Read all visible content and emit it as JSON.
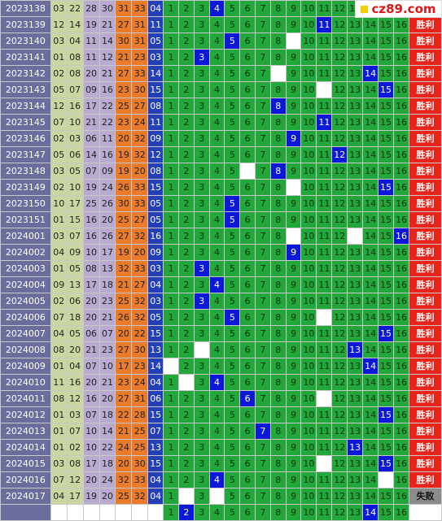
{
  "logo": {
    "text": "cz89.com"
  },
  "win_label": "胜利",
  "lose_label": "失败",
  "rows": [
    {
      "date": "2023138",
      "reds": [
        "03",
        "22",
        "28",
        "30",
        "31",
        "33"
      ],
      "blue": "04",
      "mark": 4,
      "result": "win"
    },
    {
      "date": "2023139",
      "reds": [
        "12",
        "14",
        "19",
        "21",
        "27",
        "31"
      ],
      "blue": "11",
      "mark": 11,
      "result": "win"
    },
    {
      "date": "2023140",
      "reds": [
        "03",
        "04",
        "11",
        "14",
        "30",
        "31"
      ],
      "blue": "05",
      "mark": 5,
      "result": "win"
    },
    {
      "date": "2023141",
      "reds": [
        "01",
        "08",
        "11",
        "12",
        "21",
        "23"
      ],
      "blue": "03",
      "mark": 3,
      "result": "win"
    },
    {
      "date": "2023142",
      "reds": [
        "02",
        "08",
        "20",
        "21",
        "27",
        "33"
      ],
      "blue": "14",
      "mark": 14,
      "result": "win"
    },
    {
      "date": "2023143",
      "reds": [
        "05",
        "07",
        "09",
        "16",
        "23",
        "30"
      ],
      "blue": "15",
      "mark": 15,
      "result": "win"
    },
    {
      "date": "2023144",
      "reds": [
        "12",
        "16",
        "17",
        "22",
        "25",
        "27"
      ],
      "blue": "08",
      "mark": 8,
      "result": "win"
    },
    {
      "date": "2023145",
      "reds": [
        "07",
        "10",
        "21",
        "22",
        "23",
        "24"
      ],
      "blue": "11",
      "mark": 11,
      "result": "win"
    },
    {
      "date": "2023146",
      "reds": [
        "02",
        "03",
        "06",
        "11",
        "20",
        "32"
      ],
      "blue": "09",
      "mark": 9,
      "result": "win"
    },
    {
      "date": "2023147",
      "reds": [
        "05",
        "06",
        "14",
        "16",
        "19",
        "32"
      ],
      "blue": "12",
      "mark": 12,
      "result": "win"
    },
    {
      "date": "2023148",
      "reds": [
        "03",
        "05",
        "07",
        "09",
        "19",
        "20"
      ],
      "blue": "08",
      "mark": 8,
      "result": "win"
    },
    {
      "date": "2023149",
      "reds": [
        "02",
        "10",
        "19",
        "24",
        "26",
        "33"
      ],
      "blue": "15",
      "mark": 15,
      "result": "win"
    },
    {
      "date": "2023150",
      "reds": [
        "10",
        "17",
        "25",
        "26",
        "30",
        "33"
      ],
      "blue": "05",
      "mark": 5,
      "result": "win"
    },
    {
      "date": "2023151",
      "reds": [
        "01",
        "15",
        "16",
        "20",
        "25",
        "27"
      ],
      "blue": "05",
      "mark": 5,
      "result": "win"
    },
    {
      "date": "2024001",
      "reds": [
        "03",
        "07",
        "16",
        "26",
        "27",
        "32"
      ],
      "blue": "16",
      "mark": 16,
      "result": "win"
    },
    {
      "date": "2024002",
      "reds": [
        "04",
        "09",
        "10",
        "17",
        "19",
        "20"
      ],
      "blue": "09",
      "mark": 9,
      "result": "win"
    },
    {
      "date": "2024003",
      "reds": [
        "01",
        "05",
        "08",
        "13",
        "32",
        "33"
      ],
      "blue": "03",
      "mark": 3,
      "result": "win"
    },
    {
      "date": "2024004",
      "reds": [
        "09",
        "13",
        "17",
        "18",
        "21",
        "27"
      ],
      "blue": "04",
      "mark": 4,
      "result": "win"
    },
    {
      "date": "2024005",
      "reds": [
        "02",
        "06",
        "20",
        "23",
        "25",
        "32"
      ],
      "blue": "03",
      "mark": 3,
      "result": "win"
    },
    {
      "date": "2024006",
      "reds": [
        "07",
        "18",
        "20",
        "21",
        "26",
        "32"
      ],
      "blue": "05",
      "mark": 5,
      "result": "win"
    },
    {
      "date": "2024007",
      "reds": [
        "04",
        "05",
        "06",
        "07",
        "20",
        "22"
      ],
      "blue": "15",
      "mark": 15,
      "result": "win"
    },
    {
      "date": "2024008",
      "reds": [
        "08",
        "20",
        "21",
        "23",
        "27",
        "30"
      ],
      "blue": "13",
      "mark": 13,
      "result": "win"
    },
    {
      "date": "2024009",
      "reds": [
        "01",
        "04",
        "07",
        "10",
        "17",
        "23"
      ],
      "blue": "14",
      "mark": 14,
      "result": "win"
    },
    {
      "date": "2024010",
      "reds": [
        "11",
        "16",
        "20",
        "21",
        "23",
        "24"
      ],
      "blue": "04",
      "mark": 4,
      "result": "win"
    },
    {
      "date": "2024011",
      "reds": [
        "08",
        "12",
        "16",
        "20",
        "27",
        "31"
      ],
      "blue": "06",
      "mark": 6,
      "result": "win"
    },
    {
      "date": "2024012",
      "reds": [
        "01",
        "03",
        "07",
        "18",
        "22",
        "28"
      ],
      "blue": "15",
      "mark": 15,
      "result": "win"
    },
    {
      "date": "2024013",
      "reds": [
        "01",
        "07",
        "10",
        "14",
        "21",
        "25"
      ],
      "blue": "07",
      "mark": 7,
      "result": "win"
    },
    {
      "date": "2024014",
      "reds": [
        "01",
        "02",
        "10",
        "22",
        "24",
        "25"
      ],
      "blue": "13",
      "mark": 13,
      "result": "win"
    },
    {
      "date": "2024015",
      "reds": [
        "03",
        "08",
        "17",
        "18",
        "20",
        "30"
      ],
      "blue": "15",
      "mark": 15,
      "result": "win"
    },
    {
      "date": "2024016",
      "reds": [
        "07",
        "12",
        "20",
        "24",
        "32",
        "33"
      ],
      "blue": "04",
      "mark": 4,
      "result": "win"
    },
    {
      "date": "2024017",
      "reds": [
        "04",
        "17",
        "19",
        "20",
        "25",
        "32"
      ],
      "blue": "04",
      "mark": 0,
      "result": "lose"
    }
  ],
  "blanks": [
    [],
    [],
    [
      9
    ],
    [],
    [
      8
    ],
    [
      11
    ],
    [],
    [],
    [],
    [],
    [
      6
    ],
    [
      9
    ],
    [],
    [],
    [
      9,
      13
    ],
    [],
    [],
    [],
    [],
    [
      11
    ],
    [],
    [
      3
    ],
    [
      1
    ],
    [
      2
    ],
    [
      11
    ],
    [],
    [],
    [],
    [
      11
    ],
    [
      15
    ],
    [
      2,
      4
    ]
  ],
  "last_row": {
    "blanks": [],
    "marks": [
      2,
      14
    ]
  }
}
